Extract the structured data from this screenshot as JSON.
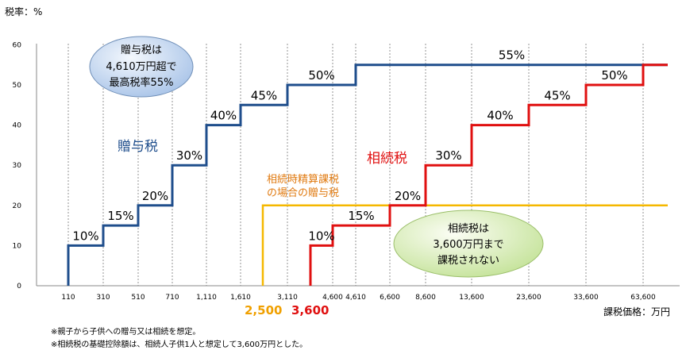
{
  "chart_data": {
    "type": "line",
    "ylabel": "税率：%",
    "xlabel": "課税価格：万円",
    "yticks": [
      "60",
      "50",
      "40",
      "30",
      "20",
      "10",
      "0"
    ],
    "ytick_values": [
      60,
      50,
      40,
      30,
      20,
      10,
      0
    ],
    "ylim": [
      0,
      60
    ],
    "grid": "vertical dotted at x ticks",
    "x_categories": [
      "110",
      "310",
      "510",
      "710",
      "1,110",
      "1,610",
      "3,110",
      "4,600",
      "4,610",
      "6,600",
      "8,600",
      "13,600",
      "23,600",
      "33,600",
      "63,600"
    ],
    "series": [
      {
        "name": "贈与税",
        "color": "#1f4e8c",
        "breakpoints": [
          "110",
          "310",
          "510",
          "710",
          "1,110",
          "1,610",
          "3,110",
          "4,610"
        ],
        "rates": [
          10,
          15,
          20,
          30,
          40,
          45,
          50,
          55
        ],
        "rate_labels": [
          "10%",
          "15%",
          "20%",
          "30%",
          "40%",
          "45%",
          "50%",
          "55%"
        ]
      },
      {
        "name": "相続税",
        "color": "#e01010",
        "start_label": "3,600",
        "breakpoints": [
          "3,600",
          "4,600",
          "6,600",
          "8,600",
          "13,600",
          "23,600",
          "33,600",
          "63,600"
        ],
        "rates": [
          10,
          15,
          20,
          30,
          40,
          45,
          50,
          55
        ],
        "rate_labels": [
          "10%",
          "15%",
          "20%",
          "30%",
          "40%",
          "45%",
          "50%",
          ""
        ]
      },
      {
        "name": "相続時精算課税の場合の贈与税",
        "name_lines": [
          "相続時精算課税",
          "の場合の贈与税"
        ],
        "color": "#f5b800",
        "start_label": "2,500",
        "rate": 20
      }
    ],
    "annotations": [
      {
        "lines": [
          "贈与税は",
          "4,610万円超で",
          "最高税率55%"
        ],
        "color": "#bcd3ee"
      },
      {
        "lines": [
          "相続税は",
          "3,600万円まで",
          "課税されない"
        ],
        "color": "#d8ebb4"
      }
    ]
  },
  "footnotes": [
    "※親子から子供への贈与又は相続を想定。",
    "※相続税の基礎控除額は、相続人子供1人と想定して3,600万円とした。"
  ]
}
